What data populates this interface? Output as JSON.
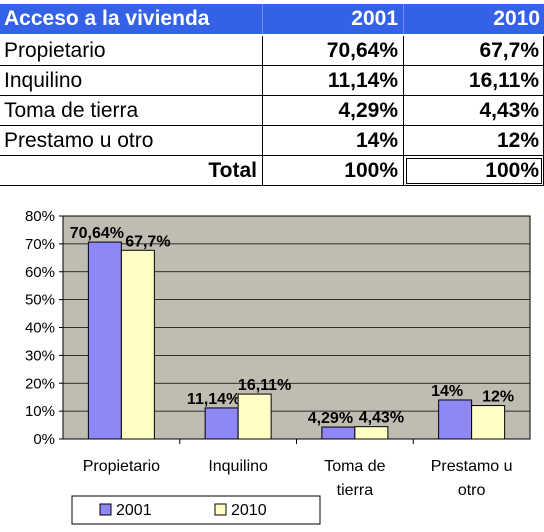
{
  "table": {
    "header": {
      "label": "Acceso a la vivienda",
      "year1": "2001",
      "year2": "2010"
    },
    "rows": [
      {
        "label": "Propietario",
        "v2001": "70,64%",
        "v2010": "67,7%"
      },
      {
        "label": "Inquilino",
        "v2001": "11,14%",
        "v2010": "16,11%"
      },
      {
        "label": "Toma de tierra",
        "v2001": "4,29%",
        "v2010": "4,43%"
      },
      {
        "label": "Prestamo u otro",
        "v2001": "14%",
        "v2010": "12%"
      }
    ],
    "total": {
      "label": "Total",
      "v2001": "100%",
      "v2010": "100%"
    }
  },
  "chart_data": {
    "type": "bar",
    "categories": [
      [
        "Propietario"
      ],
      [
        "Inquilino"
      ],
      [
        "Toma de",
        "tierra"
      ],
      [
        "Prestamo u",
        "otro"
      ]
    ],
    "series": [
      {
        "name": "2001",
        "values": [
          70.64,
          11.14,
          4.29,
          14
        ],
        "labels": [
          "70,64%",
          "11,14%",
          "4,29%",
          "14%"
        ],
        "color": "#8d88f5"
      },
      {
        "name": "2010",
        "values": [
          67.7,
          16.11,
          4.43,
          12
        ],
        "labels": [
          "67,7%",
          "16,11%",
          "4,43%",
          "12%"
        ],
        "color": "#ffffc6"
      }
    ],
    "ylim": [
      0,
      80
    ],
    "yticks": [
      "0%",
      "10%",
      "20%",
      "30%",
      "40%",
      "50%",
      "60%",
      "70%",
      "80%"
    ],
    "plot_background": "#c0bcb2",
    "grid": true,
    "legend": "bottom-left"
  }
}
